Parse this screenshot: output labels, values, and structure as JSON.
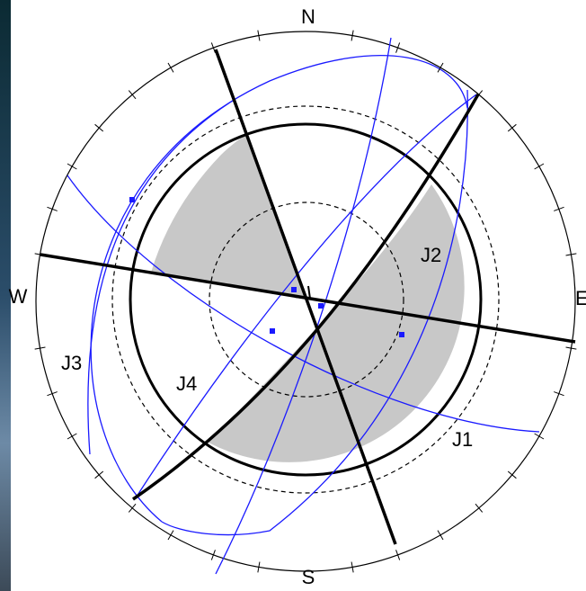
{
  "compass": {
    "north": "N",
    "south": "S",
    "west": "W",
    "east": "E"
  },
  "joints": [
    "J1",
    "J2",
    "J3",
    "J4"
  ]
}
